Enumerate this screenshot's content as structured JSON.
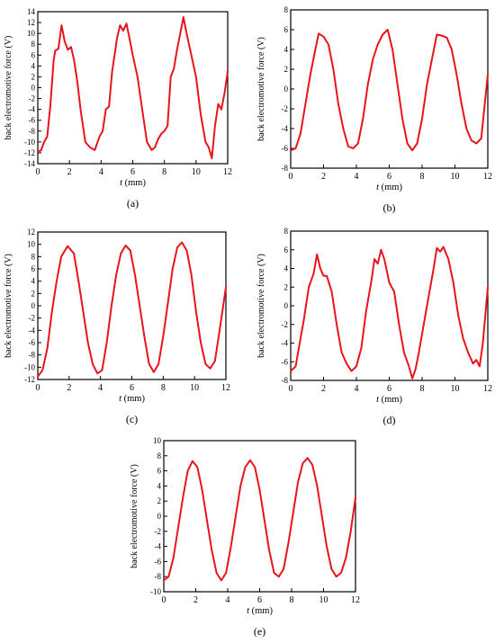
{
  "figure": {
    "line_color": "#e8141b",
    "axis_color": "#000000"
  },
  "chart_data": [
    {
      "type": "line",
      "panel_label": "(a)",
      "xlabel_italic": "t",
      "xlabel_unit": "(mm)",
      "ylabel": "back electromotive force (V)",
      "xlim": [
        0,
        12
      ],
      "ylim": [
        -14,
        14
      ],
      "xticks": [
        0,
        2,
        4,
        6,
        8,
        10,
        12
      ],
      "yticks": [
        -14,
        -12,
        -10,
        -8,
        -6,
        -4,
        -2,
        0,
        2,
        4,
        6,
        8,
        10,
        12,
        14
      ],
      "grid": false,
      "series": [
        {
          "x": [
            0.0,
            0.2,
            0.4,
            0.6,
            0.8,
            1.0,
            1.1,
            1.3,
            1.5,
            1.7,
            1.9,
            2.1,
            2.3,
            2.5,
            2.7,
            3.0,
            3.3,
            3.6,
            3.9,
            4.1,
            4.3,
            4.5,
            4.7,
            4.9,
            5.0,
            5.2,
            5.4,
            5.6,
            5.8,
            6.0,
            6.3,
            6.6,
            6.9,
            7.2,
            7.4,
            7.6,
            7.8,
            8.0,
            8.2,
            8.4,
            8.6,
            8.8,
            9.0,
            9.2,
            9.4,
            9.7,
            10.0,
            10.3,
            10.6,
            10.8,
            11.0,
            11.2,
            11.4,
            11.6,
            11.8,
            12.0
          ],
          "y": [
            -11.7,
            -11.6,
            -10.0,
            -9.0,
            -3.0,
            5.0,
            6.8,
            7.2,
            11.5,
            8.5,
            7.0,
            7.5,
            5.0,
            1.0,
            -4.0,
            -10.0,
            -11.0,
            -11.5,
            -9.0,
            -8.0,
            -4.0,
            -3.5,
            3.0,
            7.0,
            9.0,
            11.5,
            10.5,
            11.8,
            9.0,
            6.0,
            2.0,
            -4.0,
            -10.0,
            -11.5,
            -11.0,
            -9.5,
            -8.5,
            -8.0,
            -7.0,
            2.0,
            3.5,
            7.0,
            10.0,
            13.0,
            10.0,
            6.0,
            2.0,
            -5.0,
            -10.0,
            -11.0,
            -13.0,
            -7.0,
            -3.0,
            -4.0,
            -1.0,
            3.0
          ]
        }
      ]
    },
    {
      "type": "line",
      "panel_label": "(b)",
      "xlabel_italic": "t",
      "xlabel_unit": "(mm)",
      "ylabel": "back electromotive force (V)",
      "xlim": [
        0,
        12
      ],
      "ylim": [
        -8,
        8
      ],
      "xticks": [
        0,
        2,
        4,
        6,
        8,
        10,
        12
      ],
      "yticks": [
        -8,
        -6,
        -4,
        -2,
        0,
        2,
        4,
        6,
        8
      ],
      "grid": false,
      "series": [
        {
          "x": [
            0.0,
            0.3,
            0.6,
            0.9,
            1.2,
            1.5,
            1.7,
            2.0,
            2.3,
            2.6,
            2.9,
            3.2,
            3.5,
            3.8,
            4.1,
            4.4,
            4.7,
            5.0,
            5.3,
            5.6,
            5.9,
            6.2,
            6.5,
            6.8,
            7.1,
            7.4,
            7.7,
            8.0,
            8.3,
            8.6,
            8.9,
            9.2,
            9.5,
            9.8,
            10.1,
            10.4,
            10.7,
            11.0,
            11.3,
            11.6,
            12.0
          ],
          "y": [
            -6.2,
            -6.0,
            -4.5,
            -1.5,
            1.5,
            4.0,
            5.6,
            5.3,
            4.5,
            2.0,
            -1.5,
            -4.0,
            -5.8,
            -6.0,
            -5.5,
            -3.0,
            0.5,
            3.0,
            4.5,
            5.5,
            6.0,
            4.0,
            0.5,
            -3.0,
            -5.5,
            -6.2,
            -5.5,
            -3.0,
            0.5,
            3.0,
            5.5,
            5.4,
            5.2,
            4.0,
            1.5,
            -1.5,
            -4.0,
            -5.2,
            -5.5,
            -5.0,
            1.5
          ]
        }
      ]
    },
    {
      "type": "line",
      "panel_label": "(c)",
      "xlabel_italic": "t",
      "xlabel_unit": "(mm)",
      "ylabel": "back electromotive force (V)",
      "xlim": [
        0,
        12
      ],
      "ylim": [
        -12,
        12
      ],
      "xticks": [
        0,
        2,
        4,
        6,
        8,
        10,
        12
      ],
      "yticks": [
        -12,
        -10,
        -8,
        -6,
        -4,
        -2,
        0,
        2,
        4,
        6,
        8,
        10,
        12
      ],
      "grid": false,
      "series": [
        {
          "x": [
            0.0,
            0.3,
            0.6,
            0.9,
            1.2,
            1.5,
            1.9,
            2.3,
            2.6,
            2.9,
            3.2,
            3.5,
            3.8,
            4.1,
            4.4,
            4.7,
            5.0,
            5.3,
            5.6,
            5.9,
            6.2,
            6.5,
            6.8,
            7.1,
            7.4,
            7.7,
            8.0,
            8.3,
            8.6,
            8.9,
            9.2,
            9.5,
            9.8,
            10.1,
            10.4,
            10.7,
            11.0,
            11.3,
            11.6,
            12.0
          ],
          "y": [
            -11.5,
            -10.5,
            -7.0,
            -1.0,
            4.0,
            8.0,
            9.7,
            8.5,
            4.0,
            -1.0,
            -6.0,
            -9.5,
            -11.0,
            -10.5,
            -6.0,
            0.0,
            5.0,
            8.5,
            9.8,
            9.0,
            5.0,
            0.0,
            -5.0,
            -9.5,
            -10.8,
            -9.5,
            -5.0,
            0.5,
            6.0,
            9.5,
            10.3,
            9.0,
            5.0,
            -1.0,
            -6.0,
            -9.5,
            -10.2,
            -9.0,
            -4.0,
            3.0
          ]
        }
      ]
    },
    {
      "type": "line",
      "panel_label": "(d)",
      "xlabel_italic": "t",
      "xlabel_unit": "(mm)",
      "ylabel": "back electromotive force (V)",
      "xlim": [
        0,
        12
      ],
      "ylim": [
        -8,
        8
      ],
      "xticks": [
        0,
        2,
        4,
        6,
        8,
        10,
        12
      ],
      "yticks": [
        -8,
        -6,
        -4,
        -2,
        0,
        2,
        4,
        6,
        8
      ],
      "grid": false,
      "series": [
        {
          "x": [
            0.0,
            0.3,
            0.5,
            0.8,
            1.1,
            1.4,
            1.6,
            1.8,
            2.0,
            2.2,
            2.5,
            2.8,
            3.1,
            3.4,
            3.7,
            4.0,
            4.3,
            4.6,
            4.9,
            5.1,
            5.3,
            5.5,
            5.7,
            6.0,
            6.3,
            6.6,
            6.9,
            7.2,
            7.4,
            7.6,
            7.8,
            8.1,
            8.4,
            8.7,
            8.9,
            9.1,
            9.3,
            9.6,
            9.9,
            10.2,
            10.5,
            10.8,
            11.1,
            11.3,
            11.5,
            11.7,
            12.0
          ],
          "y": [
            -7.0,
            -6.5,
            -4.5,
            -1.5,
            2.0,
            3.5,
            5.5,
            4.0,
            3.2,
            3.2,
            1.5,
            -2.0,
            -5.0,
            -6.2,
            -7.0,
            -6.5,
            -4.5,
            -0.5,
            2.5,
            5.0,
            4.5,
            6.0,
            5.0,
            2.5,
            1.5,
            -2.0,
            -5.0,
            -6.5,
            -7.8,
            -6.8,
            -5.0,
            -2.0,
            1.0,
            4.0,
            6.2,
            5.8,
            6.3,
            5.0,
            2.5,
            -1.0,
            -3.5,
            -5.0,
            -6.2,
            -5.8,
            -6.5,
            -4.0,
            2.0
          ]
        }
      ]
    },
    {
      "type": "line",
      "panel_label": "(e)",
      "xlabel_italic": "t",
      "xlabel_unit": "(mm)",
      "ylabel": "back electromotive force (V)",
      "xlim": [
        0,
        12
      ],
      "ylim": [
        -10,
        10
      ],
      "xticks": [
        0,
        2,
        4,
        6,
        8,
        10,
        12
      ],
      "yticks": [
        -10,
        -8,
        -6,
        -4,
        -2,
        0,
        2,
        4,
        6,
        8,
        10
      ],
      "grid": false,
      "series": [
        {
          "x": [
            0.0,
            0.3,
            0.6,
            0.9,
            1.2,
            1.5,
            1.8,
            2.1,
            2.4,
            2.7,
            3.0,
            3.3,
            3.6,
            3.9,
            4.2,
            4.5,
            4.8,
            5.1,
            5.4,
            5.7,
            6.0,
            6.3,
            6.6,
            6.9,
            7.2,
            7.5,
            7.8,
            8.1,
            8.4,
            8.7,
            9.0,
            9.3,
            9.6,
            9.9,
            10.2,
            10.5,
            10.8,
            11.1,
            11.4,
            11.7,
            12.0
          ],
          "y": [
            -8.5,
            -8.0,
            -5.5,
            -1.5,
            2.5,
            6.0,
            7.3,
            6.5,
            3.5,
            -0.5,
            -4.5,
            -7.5,
            -8.5,
            -7.5,
            -4.0,
            0.0,
            4.0,
            6.5,
            7.4,
            6.5,
            3.5,
            -0.5,
            -4.5,
            -7.5,
            -8.0,
            -7.0,
            -3.5,
            0.5,
            4.5,
            7.0,
            7.7,
            6.8,
            4.0,
            0.0,
            -4.0,
            -7.0,
            -8.0,
            -7.5,
            -5.5,
            -2.0,
            2.5
          ]
        }
      ]
    }
  ]
}
